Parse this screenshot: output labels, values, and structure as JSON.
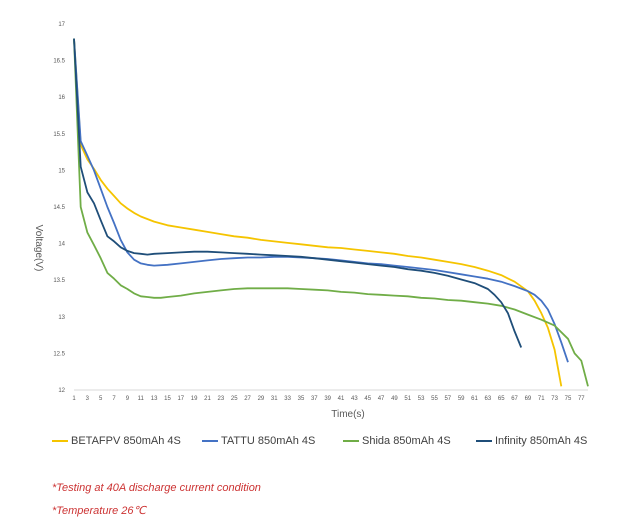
{
  "chart_data": {
    "type": "line",
    "xlabel": "Time(s)",
    "ylabel": "Voltage(V)",
    "ylim": [
      12,
      17
    ],
    "yticks": [
      12,
      12.5,
      13,
      13.5,
      14,
      14.5,
      15,
      15.5,
      16,
      16.5,
      17
    ],
    "xlim": [
      1,
      78
    ],
    "xticks": [
      1,
      3,
      5,
      7,
      9,
      11,
      13,
      15,
      17,
      19,
      21,
      23,
      25,
      27,
      29,
      31,
      33,
      35,
      37,
      39,
      41,
      43,
      45,
      47,
      49,
      51,
      53,
      55,
      57,
      59,
      61,
      63,
      65,
      67,
      69,
      71,
      73,
      75,
      77
    ],
    "grid": false,
    "legend_position": "bottom",
    "series": [
      {
        "name": "BETAFPV 850mAh 4S",
        "color": "#f5c400",
        "x": [
          1,
          2,
          3,
          4,
          5,
          6,
          7,
          8,
          9,
          10,
          11,
          13,
          15,
          17,
          19,
          21,
          23,
          25,
          27,
          29,
          31,
          33,
          35,
          37,
          39,
          41,
          43,
          45,
          47,
          49,
          51,
          53,
          55,
          57,
          59,
          61,
          63,
          65,
          67,
          69,
          70,
          71,
          72,
          73,
          74
        ],
        "values": [
          16.8,
          15.35,
          15.15,
          15.02,
          14.87,
          14.75,
          14.65,
          14.55,
          14.48,
          14.42,
          14.37,
          14.3,
          14.25,
          14.22,
          14.19,
          14.16,
          14.13,
          14.1,
          14.08,
          14.05,
          14.03,
          14.01,
          13.99,
          13.97,
          13.95,
          13.94,
          13.92,
          13.9,
          13.88,
          13.86,
          13.83,
          13.81,
          13.78,
          13.75,
          13.72,
          13.68,
          13.63,
          13.57,
          13.48,
          13.35,
          13.22,
          13.05,
          12.85,
          12.55,
          12.05
        ]
      },
      {
        "name": "TATTU 850mAh 4S",
        "color": "#4472c4",
        "x": [
          1,
          2,
          3,
          4,
          5,
          6,
          7,
          8,
          9,
          10,
          11,
          12,
          13,
          15,
          17,
          19,
          21,
          23,
          25,
          27,
          29,
          31,
          33,
          35,
          37,
          39,
          41,
          43,
          45,
          47,
          49,
          51,
          53,
          55,
          57,
          59,
          61,
          63,
          65,
          67,
          69,
          70,
          71,
          72,
          73,
          74,
          75
        ],
        "values": [
          16.8,
          15.4,
          15.2,
          15.0,
          14.75,
          14.5,
          14.28,
          14.05,
          13.88,
          13.78,
          13.73,
          13.71,
          13.7,
          13.71,
          13.73,
          13.75,
          13.77,
          13.79,
          13.8,
          13.81,
          13.81,
          13.82,
          13.82,
          13.81,
          13.8,
          13.79,
          13.77,
          13.75,
          13.73,
          13.72,
          13.7,
          13.68,
          13.66,
          13.64,
          13.61,
          13.58,
          13.55,
          13.52,
          13.48,
          13.42,
          13.35,
          13.3,
          13.22,
          13.1,
          12.9,
          12.65,
          12.38
        ]
      },
      {
        "name": "Shida 850mAh 4S",
        "color": "#70ad47",
        "x": [
          1,
          2,
          3,
          4,
          5,
          6,
          7,
          8,
          9,
          10,
          11,
          12,
          13,
          14,
          15,
          17,
          19,
          21,
          23,
          25,
          27,
          29,
          31,
          33,
          35,
          37,
          39,
          41,
          43,
          45,
          47,
          49,
          51,
          53,
          55,
          57,
          59,
          61,
          63,
          65,
          67,
          69,
          71,
          73,
          75,
          76,
          77,
          78
        ],
        "values": [
          16.8,
          14.5,
          14.15,
          13.98,
          13.8,
          13.6,
          13.52,
          13.43,
          13.38,
          13.32,
          13.28,
          13.27,
          13.26,
          13.26,
          13.27,
          13.29,
          13.32,
          13.34,
          13.36,
          13.38,
          13.39,
          13.39,
          13.39,
          13.39,
          13.38,
          13.37,
          13.36,
          13.34,
          13.33,
          13.31,
          13.3,
          13.29,
          13.28,
          13.26,
          13.25,
          13.23,
          13.22,
          13.2,
          13.18,
          13.15,
          13.1,
          13.03,
          12.96,
          12.88,
          12.7,
          12.5,
          12.4,
          12.05
        ]
      },
      {
        "name": "Infinity 850mAh 4S",
        "color": "#1f4e79",
        "x": [
          1,
          2,
          3,
          4,
          5,
          6,
          7,
          8,
          9,
          10,
          11,
          12,
          13,
          15,
          17,
          19,
          21,
          23,
          25,
          27,
          29,
          31,
          33,
          35,
          37,
          39,
          41,
          43,
          45,
          47,
          49,
          51,
          53,
          55,
          57,
          59,
          61,
          63,
          64,
          65,
          66,
          67,
          68
        ],
        "values": [
          16.8,
          15.05,
          14.7,
          14.55,
          14.32,
          14.1,
          14.03,
          13.95,
          13.9,
          13.87,
          13.86,
          13.85,
          13.86,
          13.87,
          13.88,
          13.89,
          13.89,
          13.88,
          13.87,
          13.86,
          13.85,
          13.84,
          13.83,
          13.82,
          13.8,
          13.78,
          13.76,
          13.74,
          13.72,
          13.7,
          13.68,
          13.65,
          13.63,
          13.6,
          13.56,
          13.51,
          13.46,
          13.38,
          13.3,
          13.2,
          13.05,
          12.8,
          12.58
        ]
      }
    ]
  },
  "notes": {
    "line1": "*Testing at 40A discharge current condition",
    "line2": "*Temperature 26℃"
  }
}
